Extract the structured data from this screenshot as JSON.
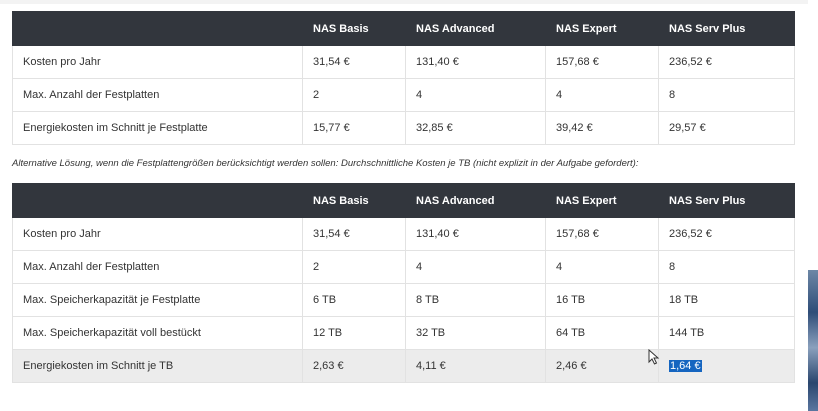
{
  "table1": {
    "headers": [
      "",
      "NAS Basis",
      "NAS Advanced",
      "NAS Expert",
      "NAS Serv Plus"
    ],
    "rows": [
      [
        "Kosten pro Jahr",
        "31,54 €",
        "131,40 €",
        "157,68 €",
        "236,52 €"
      ],
      [
        "Max. Anzahl der Festplatten",
        "2",
        "4",
        "4",
        "8"
      ],
      [
        "Energiekosten im Schnitt je Festplatte",
        "15,77 €",
        "32,85 €",
        "39,42 €",
        "29,57 €"
      ]
    ]
  },
  "note": "Alternative Lösung, wenn die Festplattengrößen berücksichtigt werden sollen: Durchschnittliche Kosten je TB (nicht explizit in der Aufgabe gefordert):",
  "table2": {
    "headers": [
      "",
      "NAS Basis",
      "NAS Advanced",
      "NAS Expert",
      "NAS Serv Plus"
    ],
    "rows": [
      [
        "Kosten pro Jahr",
        "31,54 €",
        "131,40 €",
        "157,68 €",
        "236,52 €"
      ],
      [
        "Max. Anzahl der Festplatten",
        "2",
        "4",
        "4",
        "8"
      ],
      [
        "Max. Speicherkapazität je Festplatte",
        "6 TB",
        "8 TB",
        "16 TB",
        "18 TB"
      ],
      [
        "Max. Speicherkapazität voll bestückt",
        "12 TB",
        "32 TB",
        "64 TB",
        "144 TB"
      ],
      [
        "Energiekosten im Schnitt je TB",
        "2,63 €",
        "4,11 €",
        "2,46 €",
        "1,64 €"
      ]
    ]
  },
  "colors": {
    "header_bg": "#32363d",
    "selection": "#1565c0",
    "shaded_row": "#ececec"
  },
  "selection_cell": "table2.rows.4.4",
  "cursor_icon": "mouse-pointer-icon"
}
